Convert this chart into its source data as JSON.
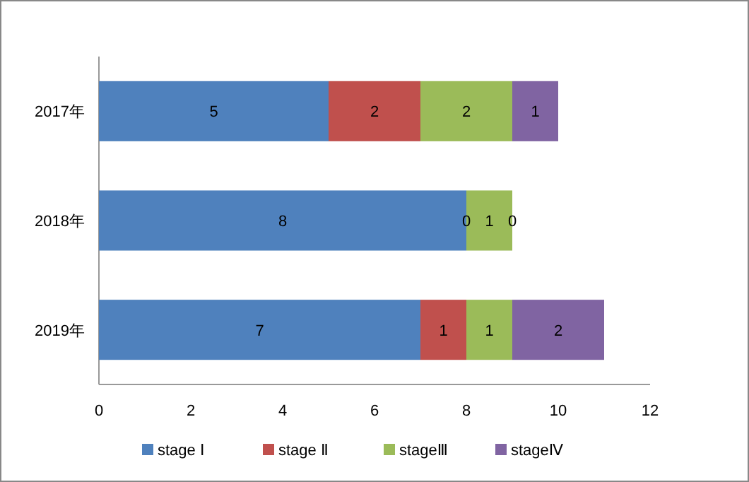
{
  "chart_data": {
    "type": "bar",
    "orientation": "horizontal",
    "stacked": true,
    "categories": [
      "2017年",
      "2018年",
      "2019年"
    ],
    "series": [
      {
        "name": "stage Ⅰ",
        "color": "#4f81bd",
        "values": [
          5,
          8,
          7
        ]
      },
      {
        "name": "stage Ⅱ",
        "color": "#c0504d",
        "values": [
          2,
          0,
          1
        ]
      },
      {
        "name": "stageⅢ",
        "color": "#9bbb59",
        "values": [
          2,
          1,
          1
        ]
      },
      {
        "name": "stageⅣ",
        "color": "#8064a2",
        "values": [
          1,
          0,
          2
        ]
      }
    ],
    "xlim": [
      0,
      12
    ],
    "xticks": [
      0,
      2,
      4,
      6,
      8,
      10,
      12
    ],
    "data_labels": true,
    "legend": "bottom",
    "grid": false
  }
}
